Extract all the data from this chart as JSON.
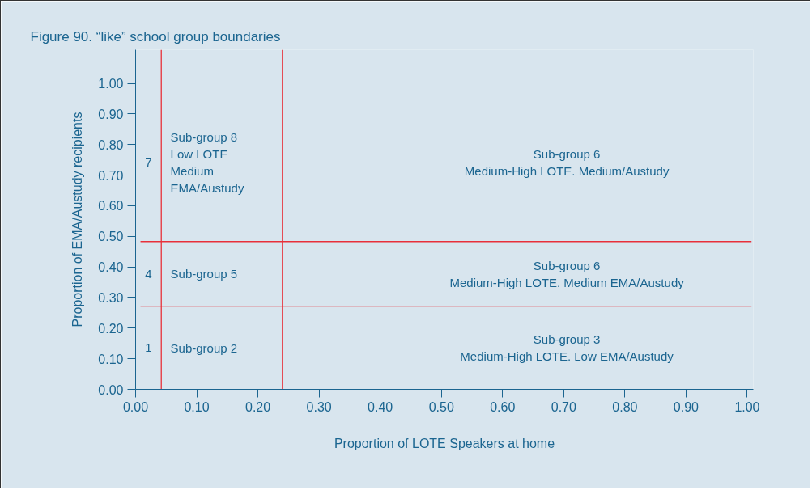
{
  "chart_data": {
    "type": "line",
    "title": "Figure 90. “like” school group boundaries",
    "xlabel": "Proportion of LOTE Speakers at home",
    "ylabel": "Proportion of EMA/Austudy recipients",
    "xlim": [
      0,
      1.01
    ],
    "ylim": [
      0,
      1.11
    ],
    "xticks": [
      {
        "value": 0,
        "label": "0.00"
      },
      {
        "value": 0.1,
        "label": "0.10"
      },
      {
        "value": 0.2,
        "label": "0.20"
      },
      {
        "value": 0.3,
        "label": "0.30"
      },
      {
        "value": 0.4,
        "label": "0.40"
      },
      {
        "value": 0.5,
        "label": "0.50"
      },
      {
        "value": 0.6,
        "label": "0.60"
      },
      {
        "value": 0.7,
        "label": "0.70"
      },
      {
        "value": 0.8,
        "label": "0.80"
      },
      {
        "value": 0.9,
        "label": "0.90"
      },
      {
        "value": 1,
        "label": "1.00"
      }
    ],
    "yticks": [
      {
        "value": 0,
        "label": "0.00"
      },
      {
        "value": 0.1,
        "label": "0.10"
      },
      {
        "value": 0.2,
        "label": "0.20"
      },
      {
        "value": 0.3,
        "label": "0.30"
      },
      {
        "value": 0.4,
        "label": "0.40"
      },
      {
        "value": 0.5,
        "label": "0.50"
      },
      {
        "value": 0.6,
        "label": "0.60"
      },
      {
        "value": 0.7,
        "label": "0.70"
      },
      {
        "value": 0.8,
        "label": "0.80"
      },
      {
        "value": 0.9,
        "label": "0.90"
      },
      {
        "value": 1,
        "label": "1.00"
      }
    ],
    "series": [
      {
        "color": "#e8303a",
        "x": [
          0.042,
          0.042
        ],
        "values": [
          0,
          1.11
        ]
      },
      {
        "color": "#e8303a",
        "x": [
          0.24,
          0.24
        ],
        "values": [
          0,
          1.11
        ]
      },
      {
        "color": "#e8303a",
        "x": [
          0.008,
          1.007
        ],
        "values": [
          0.483,
          0.483
        ]
      },
      {
        "color": "#e8303a",
        "x": [
          0.008,
          1.007
        ],
        "values": [
          0.272,
          0.272
        ]
      }
    ],
    "annotations": [
      "7",
      "4",
      "1",
      "Sub-group 8\nLow LOTE\nMedium\nEMA/Austudy",
      "Sub-group 5",
      "Sub-group 2",
      "Sub-group 6\nMedium-High LOTE. Medium/Austudy",
      "Sub-group 6\nMedium-High LOTE. Medium EMA/Austudy",
      "Sub-group 3\nMedium-High LOTE. Low EMA/Austudy"
    ]
  }
}
